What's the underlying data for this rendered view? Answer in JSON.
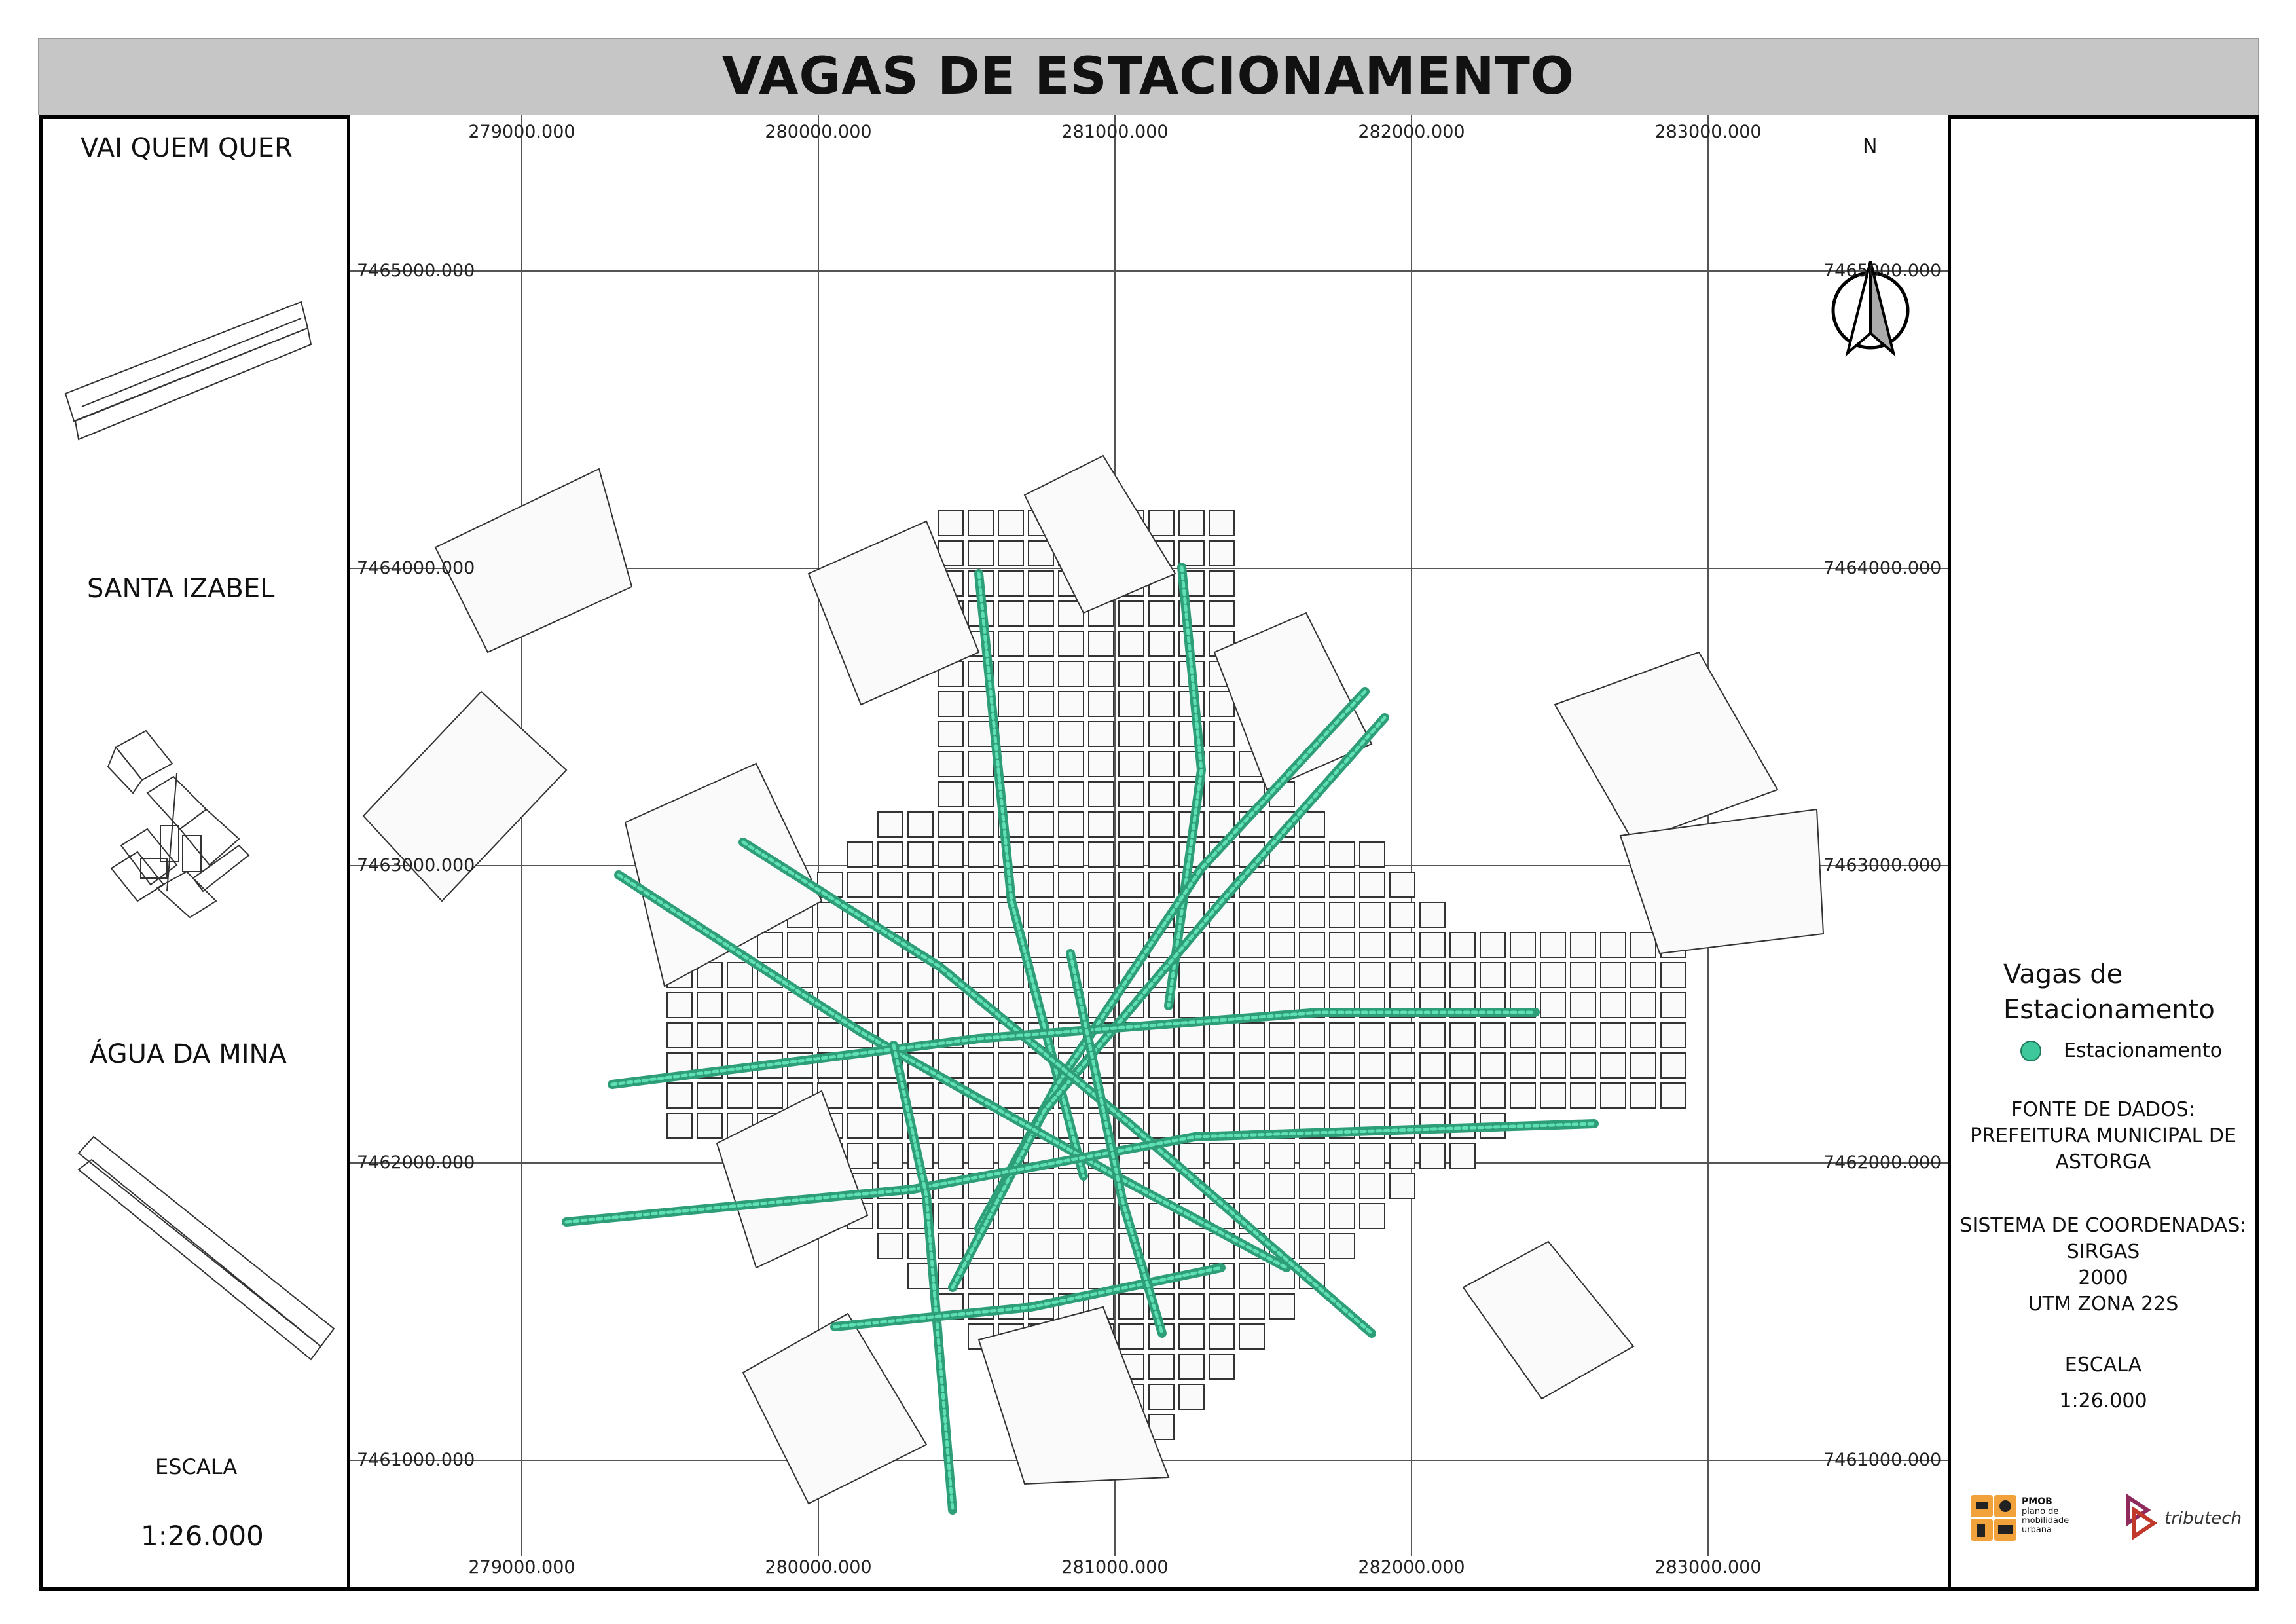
{
  "map": {
    "title": "VAGAS DE ESTACIONAMENTO",
    "north_label": "N",
    "x_ticks": [
      "279000.000",
      "280000.000",
      "281000.000",
      "282000.000",
      "283000.000"
    ],
    "y_ticks": [
      "7465000.000",
      "7464000.000",
      "7463000.000",
      "7462000.000",
      "7461000.000"
    ]
  },
  "insets": {
    "districts": [
      "VAI QUEM QUER",
      "SANTA IZABEL",
      "ÁGUA DA MINA"
    ],
    "scale_label": "ESCALA",
    "scale_value": "1:26.000"
  },
  "legend": {
    "title_line1": "Vagas de",
    "title_line2": "Estacionamento",
    "item_label": "Estacionamento",
    "item_color": "#3fc79c"
  },
  "info": {
    "source_title": "FONTE DE DADOS:",
    "source_line1": "PREFEITURA MUNICIPAL DE",
    "source_line2": "ASTORGA",
    "crs_title": "SISTEMA DE COORDENADAS:",
    "crs_line1": "SIRGAS",
    "crs_line2": "2000",
    "crs_line3": "UTM ZONA 22S",
    "scale_label": "ESCALA",
    "scale_value": "1:26.000"
  },
  "logos": {
    "pmob_title": "PMOB",
    "pmob_sub1": "plano de",
    "pmob_sub2": "mobilidade",
    "pmob_sub3": "urbana",
    "tributech": "tributech",
    "pmob_color": "#f2a23a",
    "tributech_color": "#8e2a5c"
  },
  "colors": {
    "parking": "#2e9e78",
    "parking_light": "#5fe0b4",
    "block_stroke": "#333333",
    "block_fill": "#fafafa",
    "grid": "#555555"
  }
}
